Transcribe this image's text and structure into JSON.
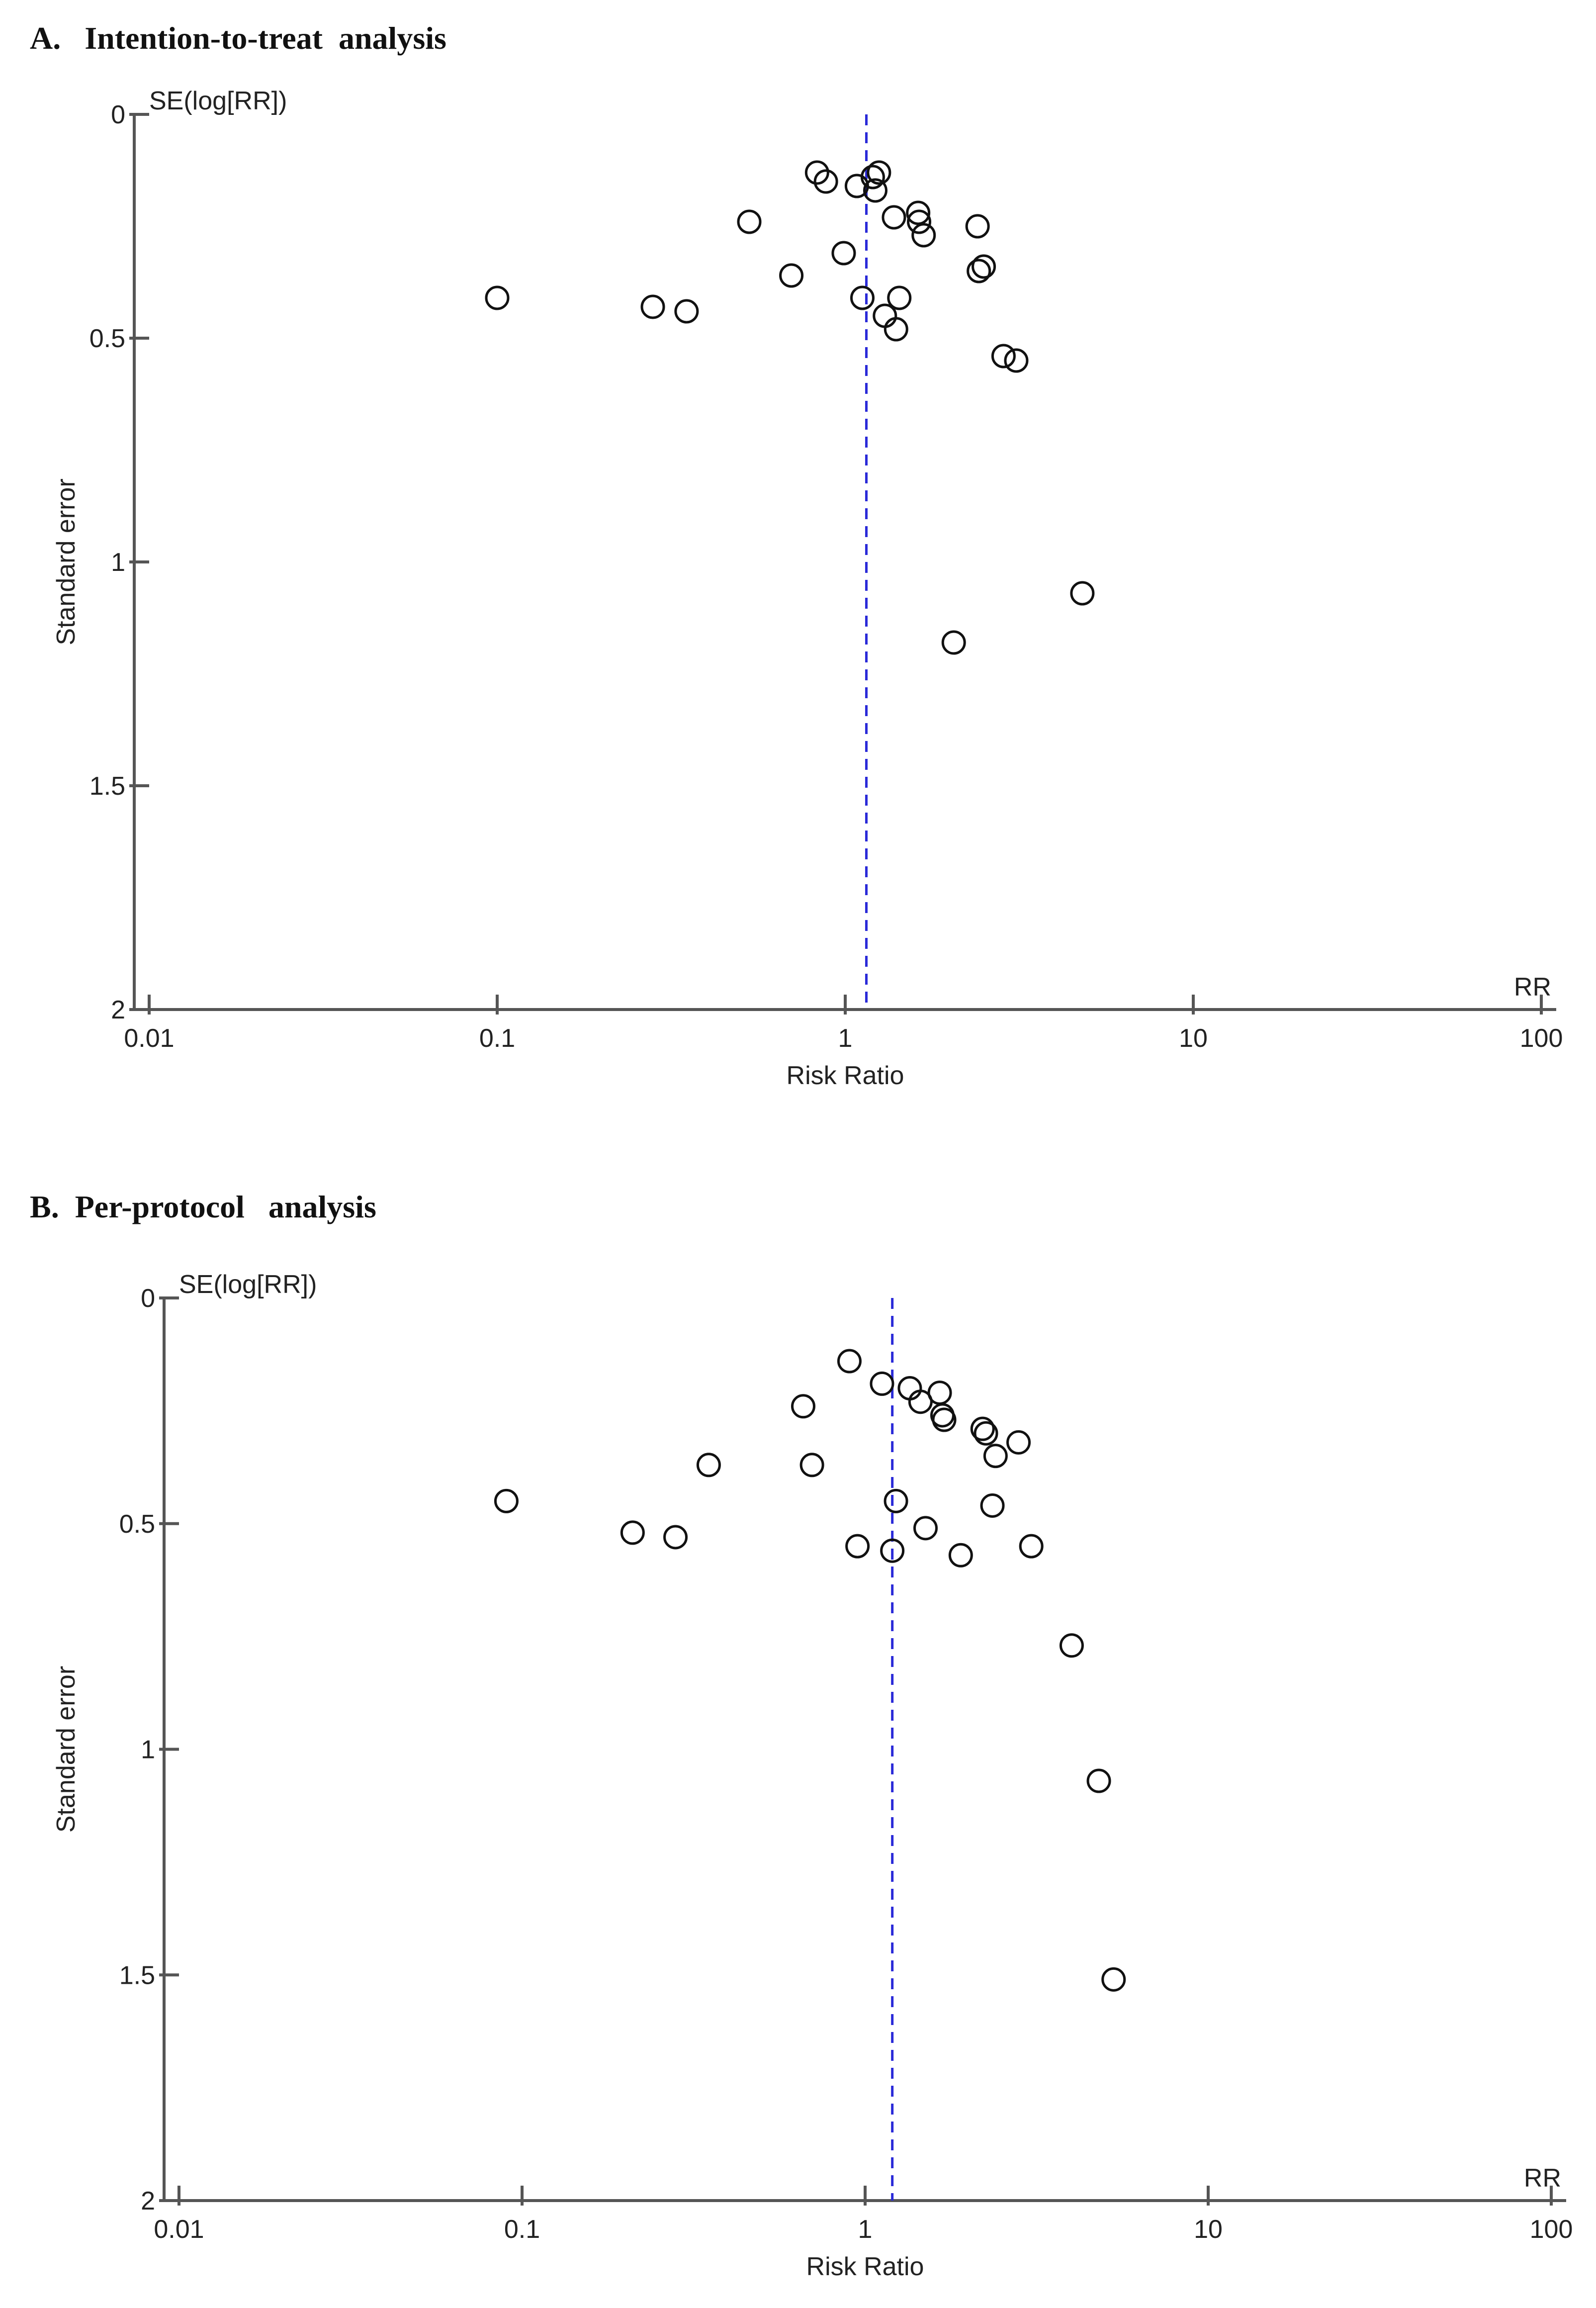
{
  "chart_data": [
    {
      "type": "scatter",
      "panel_title": "A.   Intention-to-treat  analysis",
      "xlabel": "Risk Ratio",
      "ylabel": "Standard error",
      "y_axis_top_label": "SE(log[RR])",
      "x_axis_end_label": "RR",
      "x_scale": "log",
      "xlim": [
        0.01,
        100
      ],
      "ylim": [
        0,
        2
      ],
      "y_inverted": true,
      "x_ticks": [
        "0.01",
        "0.1",
        "1",
        "10",
        "100"
      ],
      "x_tick_values": [
        0.01,
        0.1,
        1,
        10,
        100
      ],
      "y_ticks": [
        "0",
        "0.5",
        "1",
        "1.5",
        "2"
      ],
      "y_tick_values": [
        0,
        0.5,
        1,
        1.5,
        2
      ],
      "pooled_estimate_rr": 1.15,
      "pooled_line_color": "#2a2ad8",
      "points": [
        {
          "rr": 0.83,
          "se": 0.13
        },
        {
          "rr": 0.88,
          "se": 0.15
        },
        {
          "rr": 1.08,
          "se": 0.16
        },
        {
          "rr": 1.2,
          "se": 0.14
        },
        {
          "rr": 1.25,
          "se": 0.13
        },
        {
          "rr": 1.22,
          "se": 0.17
        },
        {
          "rr": 1.38,
          "se": 0.23
        },
        {
          "rr": 1.62,
          "se": 0.22
        },
        {
          "rr": 1.63,
          "se": 0.24
        },
        {
          "rr": 1.68,
          "se": 0.27
        },
        {
          "rr": 2.4,
          "se": 0.25
        },
        {
          "rr": 0.53,
          "se": 0.24
        },
        {
          "rr": 0.99,
          "se": 0.31
        },
        {
          "rr": 0.7,
          "se": 0.36
        },
        {
          "rr": 2.42,
          "se": 0.35
        },
        {
          "rr": 2.5,
          "se": 0.34
        },
        {
          "rr": 0.1,
          "se": 0.41
        },
        {
          "rr": 0.28,
          "se": 0.43
        },
        {
          "rr": 0.35,
          "se": 0.44
        },
        {
          "rr": 1.12,
          "se": 0.41
        },
        {
          "rr": 1.43,
          "se": 0.41
        },
        {
          "rr": 1.3,
          "se": 0.45
        },
        {
          "rr": 1.4,
          "se": 0.48
        },
        {
          "rr": 2.85,
          "se": 0.54
        },
        {
          "rr": 3.1,
          "se": 0.55
        },
        {
          "rr": 4.8,
          "se": 1.07
        },
        {
          "rr": 2.05,
          "se": 1.18
        }
      ]
    },
    {
      "type": "scatter",
      "panel_title": "B.  Per-protocol   analysis",
      "xlabel": "Risk Ratio",
      "ylabel": "Standard error",
      "y_axis_top_label": "SE(log[RR])",
      "x_axis_end_label": "RR",
      "x_scale": "log",
      "xlim": [
        0.01,
        100
      ],
      "ylim": [
        0,
        2
      ],
      "y_inverted": true,
      "x_ticks": [
        "0.01",
        "0.1",
        "1",
        "10",
        "100"
      ],
      "x_tick_values": [
        0.01,
        0.1,
        1,
        10,
        100
      ],
      "y_ticks": [
        "0",
        "0.5",
        "1",
        "1.5",
        "2"
      ],
      "y_tick_values": [
        0,
        0.5,
        1,
        1.5,
        2
      ],
      "pooled_estimate_rr": 1.2,
      "pooled_line_color": "#2a2ad8",
      "points": [
        {
          "rr": 0.9,
          "se": 0.14
        },
        {
          "rr": 1.12,
          "se": 0.19
        },
        {
          "rr": 1.35,
          "se": 0.2
        },
        {
          "rr": 1.45,
          "se": 0.23
        },
        {
          "rr": 1.65,
          "se": 0.21
        },
        {
          "rr": 1.7,
          "se": 0.27
        },
        {
          "rr": 1.68,
          "se": 0.26
        },
        {
          "rr": 2.2,
          "se": 0.29
        },
        {
          "rr": 2.25,
          "se": 0.3
        },
        {
          "rr": 2.8,
          "se": 0.32
        },
        {
          "rr": 2.4,
          "se": 0.35
        },
        {
          "rr": 0.66,
          "se": 0.24
        },
        {
          "rr": 0.35,
          "se": 0.37
        },
        {
          "rr": 0.7,
          "se": 0.37
        },
        {
          "rr": 0.09,
          "se": 0.45
        },
        {
          "rr": 1.23,
          "se": 0.45
        },
        {
          "rr": 2.35,
          "se": 0.46
        },
        {
          "rr": 0.21,
          "se": 0.52
        },
        {
          "rr": 0.28,
          "se": 0.53
        },
        {
          "rr": 1.5,
          "se": 0.51
        },
        {
          "rr": 0.95,
          "se": 0.55
        },
        {
          "rr": 1.2,
          "se": 0.56
        },
        {
          "rr": 1.9,
          "se": 0.57
        },
        {
          "rr": 3.05,
          "se": 0.55
        },
        {
          "rr": 4.0,
          "se": 0.77
        },
        {
          "rr": 4.8,
          "se": 1.07
        },
        {
          "rr": 5.3,
          "se": 1.51
        }
      ]
    }
  ]
}
